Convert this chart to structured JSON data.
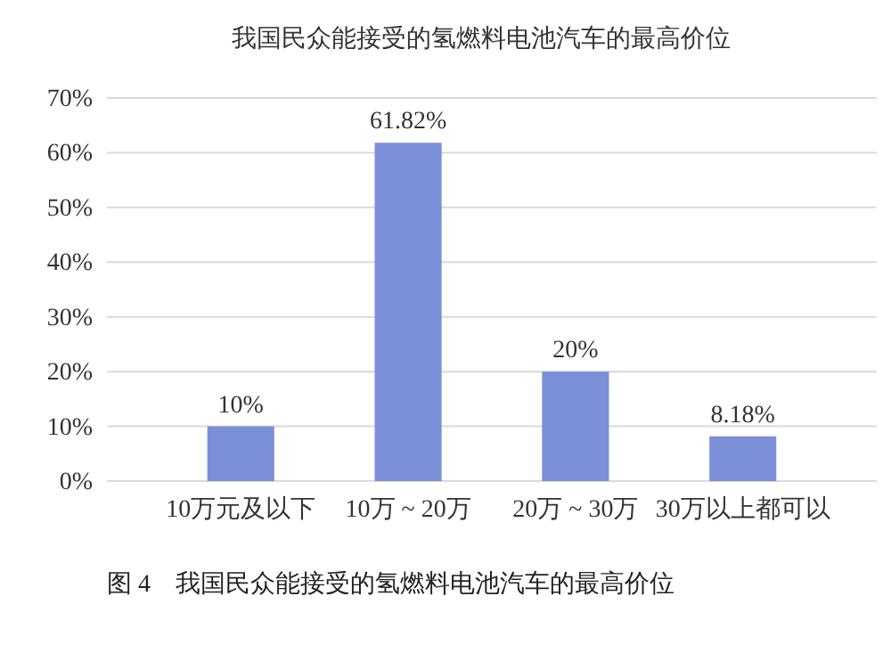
{
  "chart_data": {
    "type": "bar",
    "title": "我国民众能接受的氢燃料电池汽车的最高价位",
    "categories": [
      "10万元及以下",
      "10万 ~ 20万",
      "20万 ~ 30万",
      "30万以上都可以"
    ],
    "values": [
      10,
      61.82,
      20,
      8.18
    ],
    "color": "#7a8fd8",
    "value_labels": [
      "10%",
      "61.82%",
      "20%",
      "8.18%"
    ],
    "ylim": [
      0,
      70
    ],
    "yticks": [
      {
        "value": 0,
        "label": "0%"
      },
      {
        "value": 10,
        "label": "10%"
      },
      {
        "value": 20,
        "label": "20%"
      },
      {
        "value": 30,
        "label": "30%"
      },
      {
        "value": 40,
        "label": "40%"
      },
      {
        "value": 50,
        "label": "50%"
      },
      {
        "value": 60,
        "label": "60%"
      },
      {
        "value": 70,
        "label": "70%"
      }
    ],
    "grid": "y",
    "annotations": [
      "图 4　我国民众能接受的氢燃料电池汽车的最高价位"
    ]
  }
}
